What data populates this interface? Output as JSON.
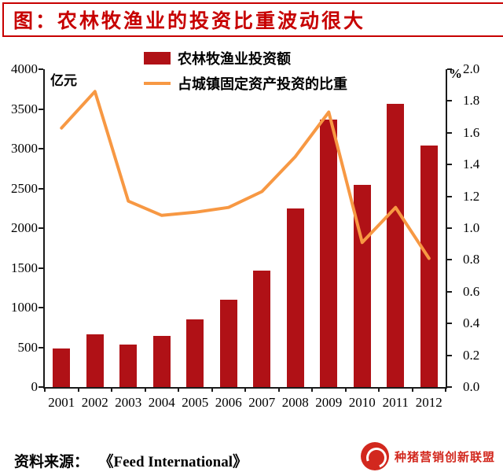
{
  "header": {
    "title": "图：农林牧渔业的投资比重波动很大"
  },
  "chart_data": {
    "type": "bar",
    "title": "图：农林牧渔业的投资比重波动很大",
    "categories": [
      "2001",
      "2002",
      "2003",
      "2004",
      "2005",
      "2006",
      "2007",
      "2008",
      "2009",
      "2010",
      "2011",
      "2012"
    ],
    "series": [
      {
        "name": "农林牧渔业投资额",
        "type": "bar",
        "axis": "left",
        "color": "#b01116",
        "values": [
          490,
          660,
          530,
          640,
          850,
          1100,
          1470,
          2250,
          3370,
          2540,
          3560,
          3040
        ]
      },
      {
        "name": "占城镇固定资产投资的比重",
        "type": "line",
        "axis": "right",
        "color": "#f79843",
        "values": [
          1.63,
          1.86,
          1.17,
          1.08,
          1.1,
          1.13,
          1.23,
          1.45,
          1.73,
          0.91,
          1.13,
          0.81
        ]
      }
    ],
    "left_axis": {
      "unit": "亿元",
      "min": 0,
      "max": 4000,
      "step": 500
    },
    "right_axis": {
      "unit": "%",
      "min": 0,
      "max": 2.0,
      "step": 0.2
    },
    "legend_position": "top-center",
    "grid": false
  },
  "footer": {
    "source_label": "资料来源：",
    "source_text": "《Feed International》"
  },
  "watermark": {
    "text": "种猪营销创新联盟"
  },
  "colors": {
    "title": "#c70000",
    "bar": "#b01116",
    "line": "#f79843",
    "axis": "#1a1a1a"
  }
}
